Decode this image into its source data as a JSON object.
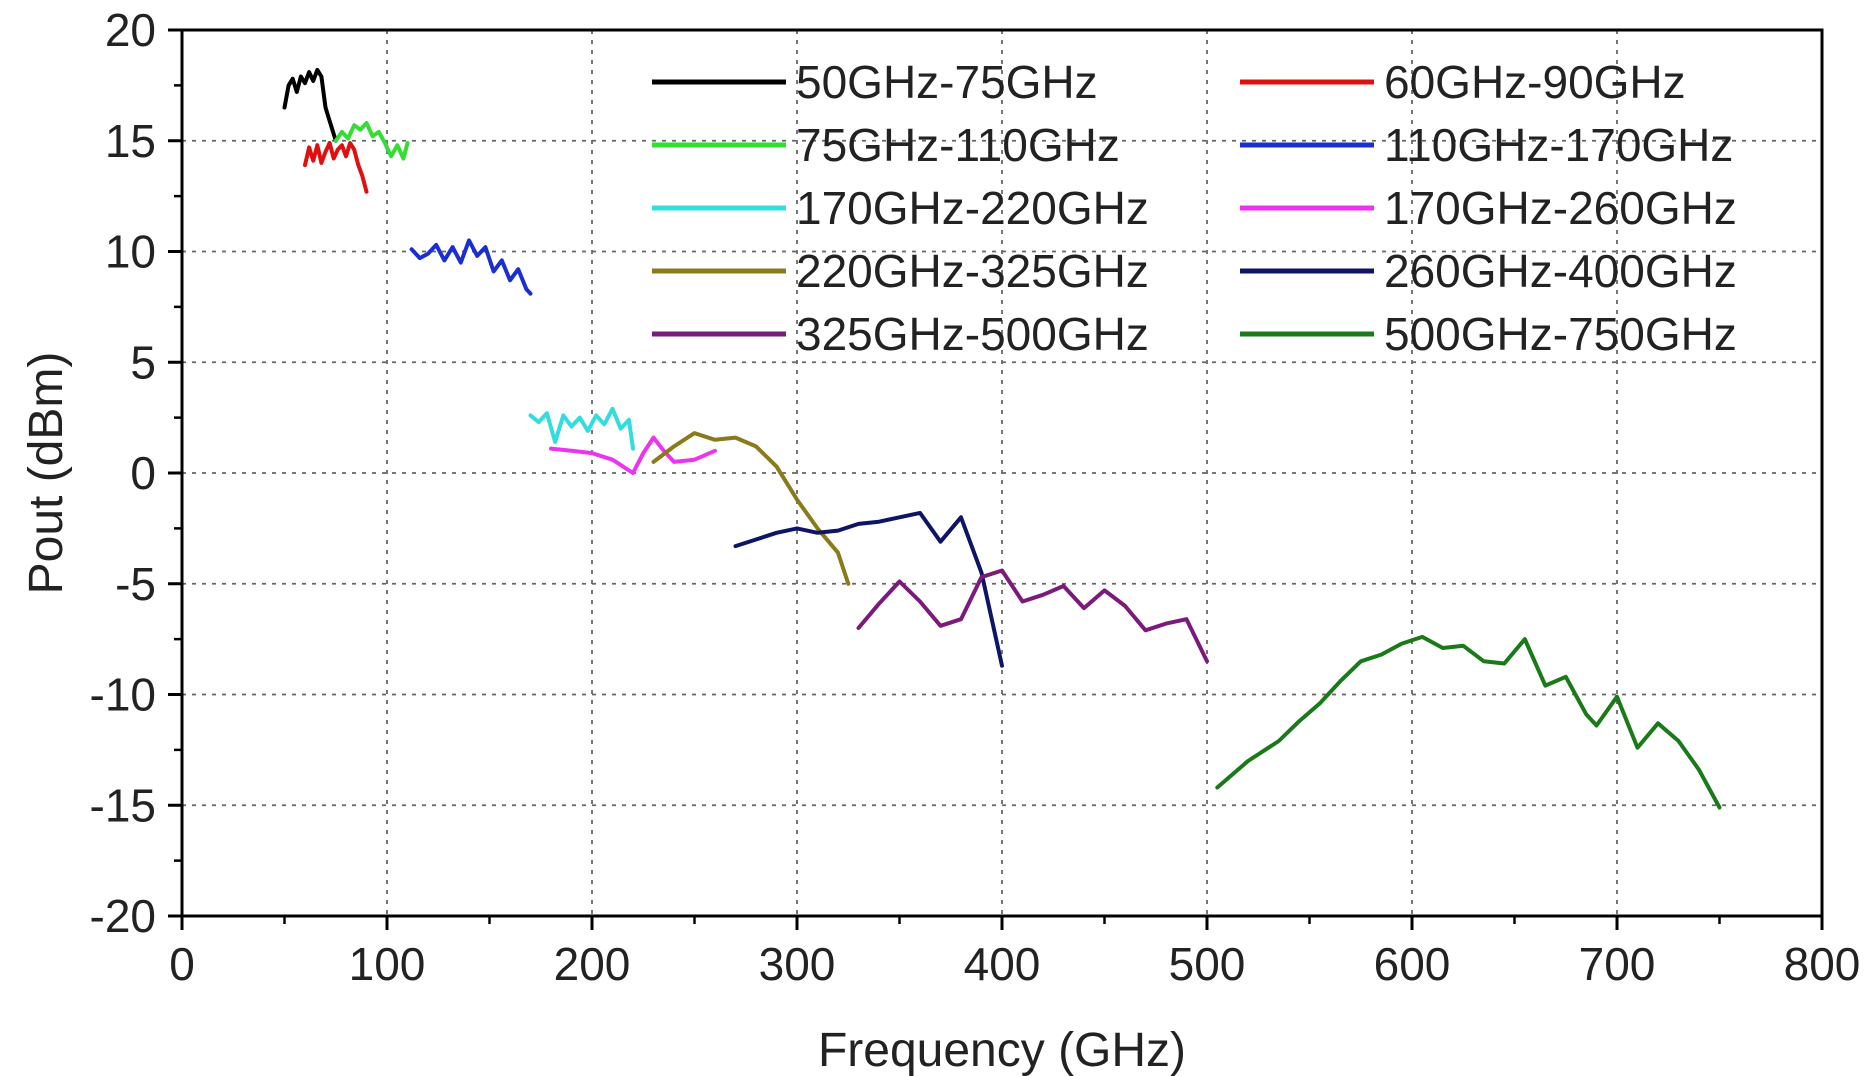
{
  "chart_data": {
    "type": "line",
    "xlabel": "Frequency (GHz)",
    "ylabel": "Pout (dBm)",
    "xlim": [
      0,
      800
    ],
    "ylim": [
      -20,
      20
    ],
    "x_ticks": [
      0,
      100,
      200,
      300,
      400,
      500,
      600,
      700,
      800
    ],
    "y_ticks": [
      -20,
      -15,
      -10,
      -5,
      0,
      5,
      10,
      15,
      20
    ],
    "x_tick_labels": [
      "0",
      "100",
      "200",
      "300",
      "400",
      "500",
      "600",
      "700",
      "800"
    ],
    "y_tick_labels": [
      "-20",
      "-15",
      "-10",
      "-5",
      "0",
      "5",
      "10",
      "15",
      "20"
    ],
    "grid": true,
    "grid_style": "dotted",
    "legend_position": "top-right",
    "legend_columns": 2,
    "series": [
      {
        "name": "50GHz-75GHz",
        "color": "#000000",
        "x": [
          50,
          52,
          54,
          56,
          58,
          60,
          62,
          64,
          66,
          68,
          70,
          72,
          75
        ],
        "y": [
          16.5,
          17.5,
          17.8,
          17.2,
          17.9,
          17.6,
          18.1,
          17.7,
          18.2,
          17.9,
          16.5,
          15.9,
          15.0
        ]
      },
      {
        "name": "60GHz-90GHz",
        "color": "#e01010",
        "x": [
          60,
          62,
          64,
          66,
          68,
          70,
          72,
          74,
          76,
          78,
          80,
          82,
          84,
          86,
          88,
          90
        ],
        "y": [
          13.9,
          14.7,
          14.1,
          14.8,
          14.0,
          14.5,
          14.9,
          14.2,
          14.6,
          14.8,
          14.3,
          14.9,
          14.6,
          13.9,
          13.4,
          12.7
        ]
      },
      {
        "name": "75GHz-110GHz",
        "color": "#33dd33",
        "x": [
          75,
          78,
          81,
          84,
          87,
          90,
          93,
          96,
          99,
          102,
          105,
          108,
          110
        ],
        "y": [
          15.0,
          15.4,
          15.1,
          15.7,
          15.5,
          15.8,
          15.2,
          15.4,
          14.9,
          14.3,
          14.8,
          14.2,
          14.9
        ]
      },
      {
        "name": "110GHz-170GHz",
        "color": "#1a2fd0",
        "x": [
          112,
          116,
          120,
          124,
          128,
          132,
          136,
          140,
          144,
          148,
          152,
          156,
          160,
          164,
          168,
          170
        ],
        "y": [
          10.1,
          9.7,
          9.9,
          10.3,
          9.6,
          10.2,
          9.5,
          10.5,
          9.8,
          10.2,
          9.1,
          9.6,
          8.7,
          9.2,
          8.3,
          8.1
        ]
      },
      {
        "name": "170GHz-220GHz",
        "color": "#33dddd",
        "x": [
          170,
          174,
          178,
          182,
          186,
          190,
          194,
          198,
          202,
          206,
          210,
          214,
          218,
          220
        ],
        "y": [
          2.6,
          2.3,
          2.7,
          1.4,
          2.6,
          2.1,
          2.5,
          1.9,
          2.6,
          2.2,
          2.9,
          2.0,
          2.4,
          1.1
        ]
      },
      {
        "name": "170GHz-260GHz",
        "color": "#ee33ee",
        "x": [
          180,
          190,
          200,
          210,
          220,
          225,
          230,
          235,
          240,
          250,
          260
        ],
        "y": [
          1.1,
          1.0,
          0.9,
          0.6,
          0.0,
          0.9,
          1.6,
          1.0,
          0.5,
          0.6,
          1.0
        ]
      },
      {
        "name": "220GHz-325GHz",
        "color": "#8a7a1c",
        "x": [
          230,
          240,
          250,
          260,
          270,
          280,
          290,
          300,
          310,
          320,
          325
        ],
        "y": [
          0.5,
          1.2,
          1.8,
          1.5,
          1.6,
          1.2,
          0.3,
          -1.2,
          -2.5,
          -3.6,
          -5.0
        ]
      },
      {
        "name": "260GHz-400GHz",
        "color": "#0e1566",
        "x": [
          270,
          280,
          290,
          300,
          310,
          320,
          330,
          340,
          350,
          360,
          370,
          380,
          390,
          400
        ],
        "y": [
          -3.3,
          -3.0,
          -2.7,
          -2.5,
          -2.7,
          -2.6,
          -2.3,
          -2.2,
          -2.0,
          -1.8,
          -3.1,
          -2.0,
          -4.5,
          -8.7
        ]
      },
      {
        "name": "325GHz-500GHz",
        "color": "#7a1a7a",
        "x": [
          330,
          340,
          350,
          360,
          370,
          380,
          390,
          400,
          410,
          420,
          430,
          440,
          450,
          460,
          470,
          480,
          490,
          500
        ],
        "y": [
          -7.0,
          -5.9,
          -4.9,
          -5.8,
          -6.9,
          -6.6,
          -4.7,
          -4.4,
          -5.8,
          -5.5,
          -5.1,
          -6.1,
          -5.3,
          -6.0,
          -7.1,
          -6.8,
          -6.6,
          -8.5
        ]
      },
      {
        "name": "500GHz-750GHz",
        "color": "#1a7a1a",
        "x": [
          505,
          520,
          535,
          545,
          555,
          565,
          575,
          585,
          595,
          605,
          615,
          625,
          635,
          645,
          655,
          665,
          675,
          685,
          690,
          700,
          710,
          720,
          730,
          740,
          750
        ],
        "y": [
          -14.2,
          -13.0,
          -12.1,
          -11.2,
          -10.4,
          -9.4,
          -8.5,
          -8.2,
          -7.7,
          -7.4,
          -7.9,
          -7.8,
          -8.5,
          -8.6,
          -7.5,
          -9.6,
          -9.2,
          -10.9,
          -11.4,
          -10.1,
          -12.4,
          -11.3,
          -12.1,
          -13.4,
          -15.1
        ]
      }
    ]
  }
}
